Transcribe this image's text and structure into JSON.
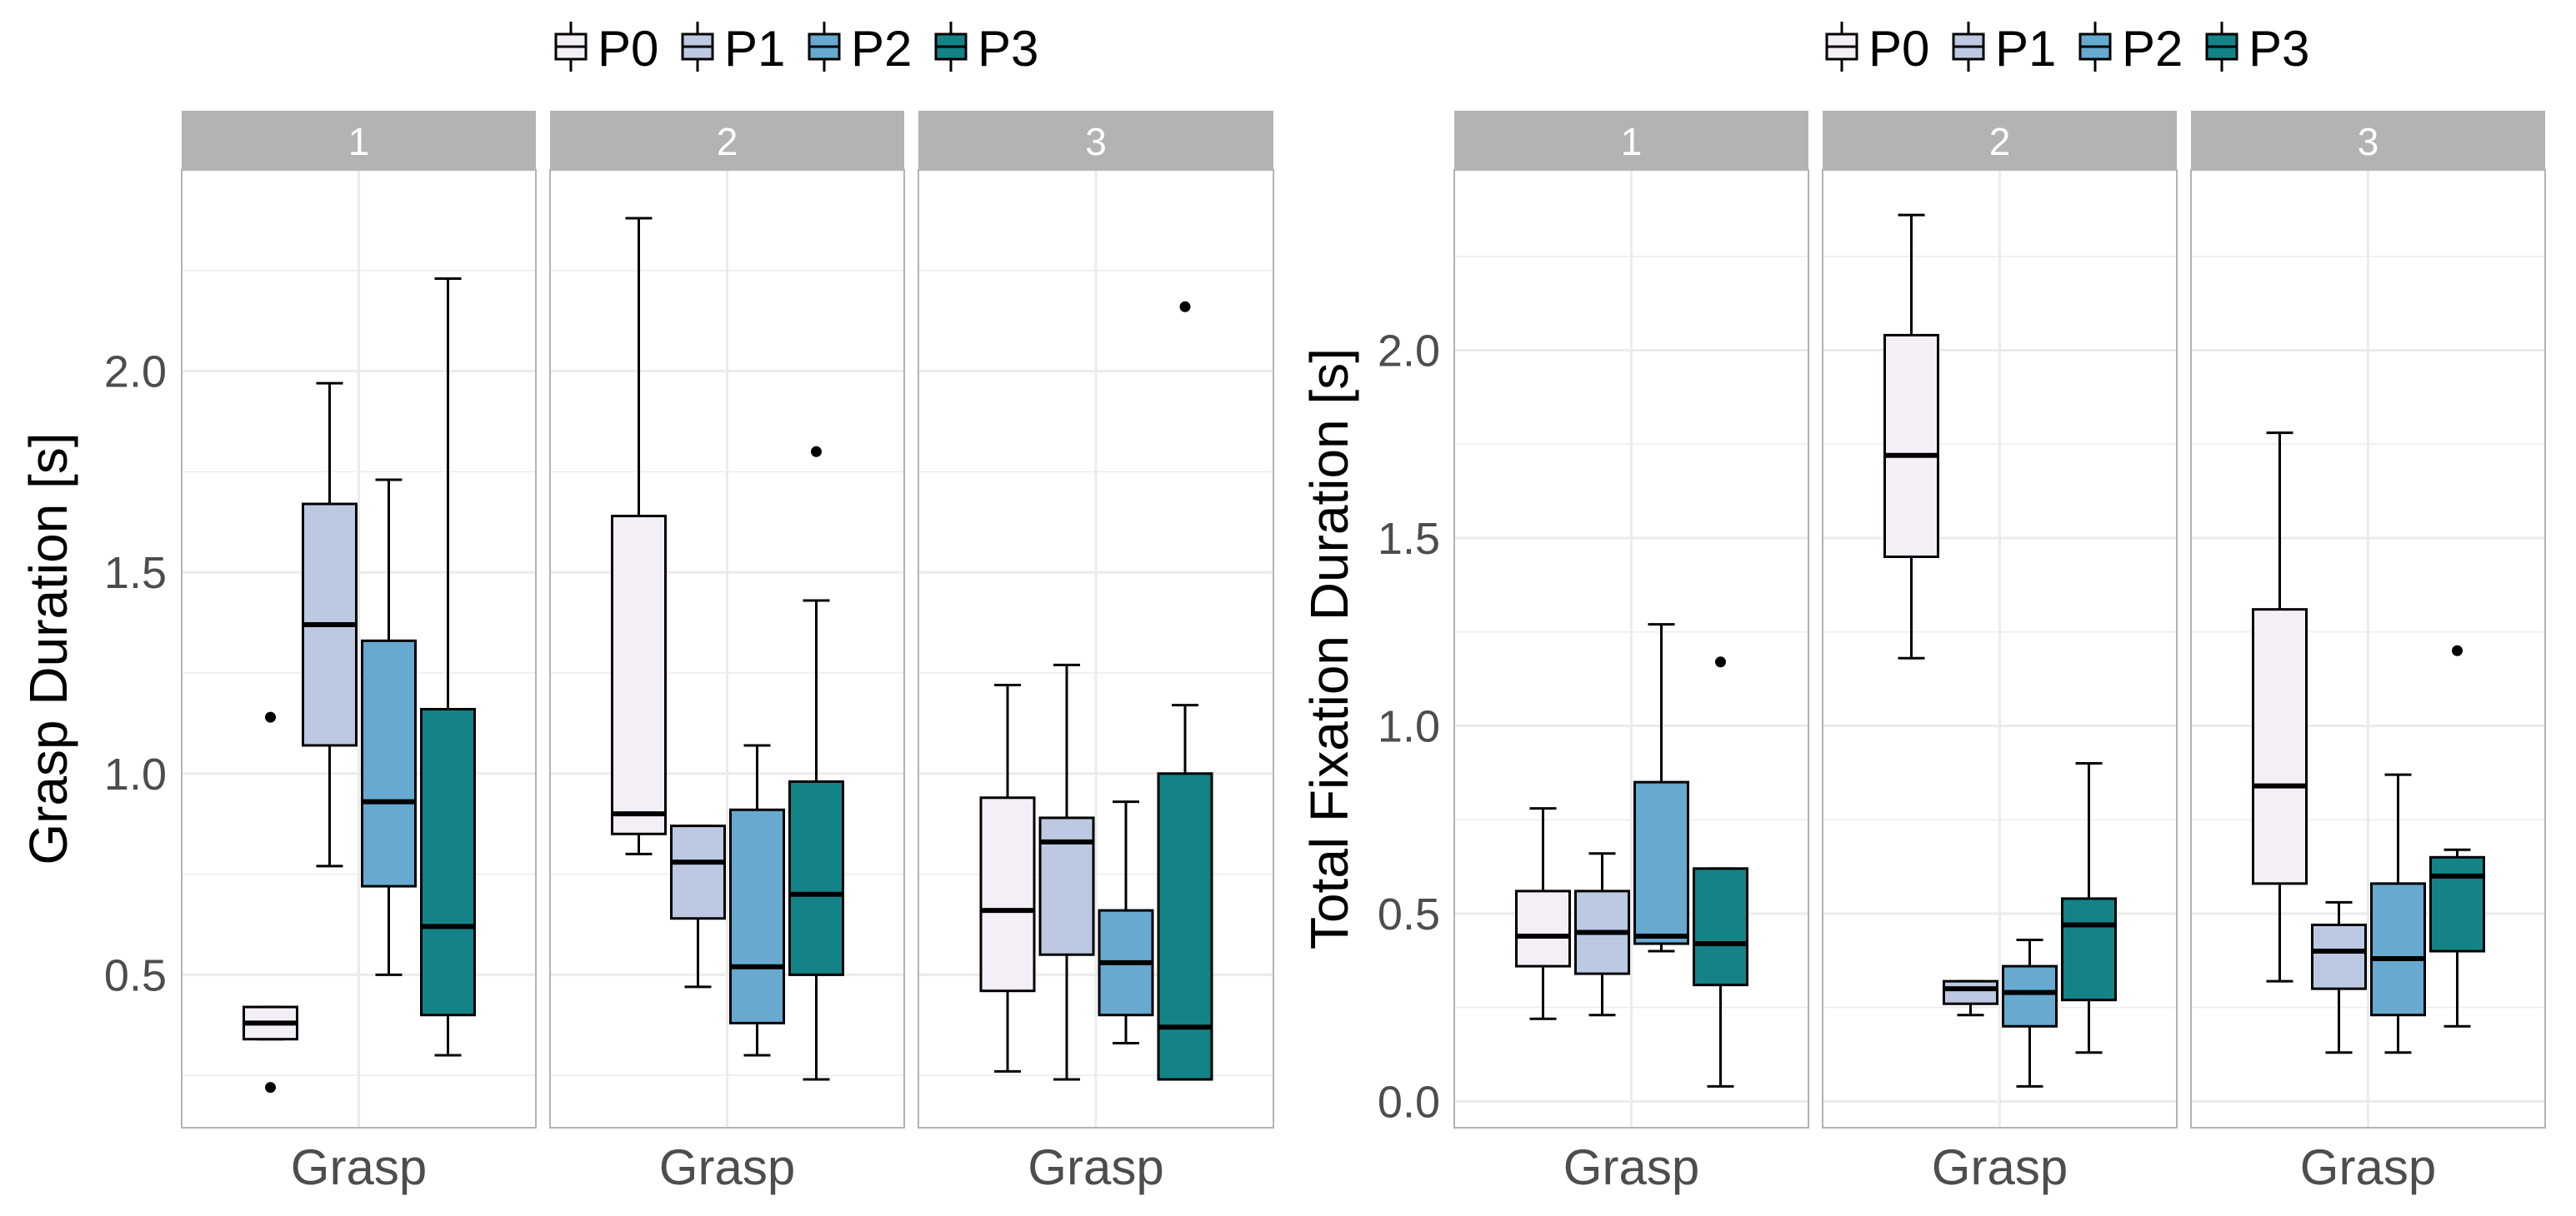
{
  "charts": [
    {
      "type": "box",
      "ylabel": "Grasp Duration [s]",
      "yticks": [
        "0.5",
        "1.0",
        "1.5",
        "2.0"
      ],
      "ylim": [
        0.12,
        2.5
      ],
      "legend": [
        "P0",
        "P1",
        "P2",
        "P3"
      ],
      "facets": [
        {
          "label": "1",
          "xtick": "Grasp",
          "boxes": [
            {
              "series": "P0",
              "min": 0.34,
              "q1": 0.34,
              "median": 0.38,
              "q3": 0.42,
              "max": 0.42,
              "outliers": [
                1.14,
                0.22
              ]
            },
            {
              "series": "P1",
              "min": 0.77,
              "q1": 1.07,
              "median": 1.37,
              "q3": 1.67,
              "max": 1.97,
              "outliers": []
            },
            {
              "series": "P2",
              "min": 0.5,
              "q1": 0.72,
              "median": 0.93,
              "q3": 1.33,
              "max": 1.73,
              "outliers": []
            },
            {
              "series": "P3",
              "min": 0.3,
              "q1": 0.4,
              "median": 0.62,
              "q3": 1.16,
              "max": 2.23,
              "outliers": []
            }
          ]
        },
        {
          "label": "2",
          "xtick": "Grasp",
          "boxes": [
            {
              "series": "P0",
              "min": 0.8,
              "q1": 0.85,
              "median": 0.9,
              "q3": 1.64,
              "max": 2.38,
              "outliers": []
            },
            {
              "series": "P1",
              "min": 0.47,
              "q1": 0.64,
              "median": 0.78,
              "q3": 0.87,
              "max": 0.87,
              "outliers": []
            },
            {
              "series": "P2",
              "min": 0.3,
              "q1": 0.38,
              "median": 0.52,
              "q3": 0.91,
              "max": 1.07,
              "outliers": []
            },
            {
              "series": "P3",
              "min": 0.24,
              "q1": 0.5,
              "median": 0.7,
              "q3": 0.98,
              "max": 1.43,
              "outliers": [
                1.8
              ]
            }
          ]
        },
        {
          "label": "3",
          "xtick": "Grasp",
          "boxes": [
            {
              "series": "P0",
              "min": 0.26,
              "q1": 0.46,
              "median": 0.66,
              "q3": 0.94,
              "max": 1.22,
              "outliers": []
            },
            {
              "series": "P1",
              "min": 0.24,
              "q1": 0.55,
              "median": 0.83,
              "q3": 0.89,
              "max": 1.27,
              "outliers": []
            },
            {
              "series": "P2",
              "min": 0.33,
              "q1": 0.4,
              "median": 0.53,
              "q3": 0.66,
              "max": 0.93,
              "outliers": []
            },
            {
              "series": "P3",
              "min": 0.24,
              "q1": 0.24,
              "median": 0.37,
              "q3": 1.0,
              "max": 1.17,
              "outliers": [
                2.16
              ]
            }
          ]
        }
      ]
    },
    {
      "type": "box",
      "ylabel": "Total Fixation Duration [s]",
      "yticks": [
        "0.0",
        "0.5",
        "1.0",
        "1.5",
        "2.0"
      ],
      "ylim": [
        -0.07,
        2.48
      ],
      "legend": [
        "P0",
        "P1",
        "P2",
        "P3"
      ],
      "facets": [
        {
          "label": "1",
          "xtick": "Grasp",
          "boxes": [
            {
              "series": "P0",
              "min": 0.22,
              "q1": 0.36,
              "median": 0.44,
              "q3": 0.56,
              "max": 0.78,
              "outliers": []
            },
            {
              "series": "P1",
              "min": 0.23,
              "q1": 0.34,
              "median": 0.45,
              "q3": 0.56,
              "max": 0.66,
              "outliers": []
            },
            {
              "series": "P2",
              "min": 0.4,
              "q1": 0.42,
              "median": 0.44,
              "q3": 0.85,
              "max": 1.27,
              "outliers": []
            },
            {
              "series": "P3",
              "min": 0.04,
              "q1": 0.31,
              "median": 0.42,
              "q3": 0.62,
              "max": 0.62,
              "outliers": [
                1.17
              ]
            }
          ]
        },
        {
          "label": "2",
          "xtick": "Grasp",
          "boxes": [
            {
              "series": "P0",
              "min": 1.18,
              "q1": 1.45,
              "median": 1.72,
              "q3": 2.04,
              "max": 2.36,
              "outliers": []
            },
            {
              "series": "P1",
              "min": 0.23,
              "q1": 0.26,
              "median": 0.3,
              "q3": 0.32,
              "max": 0.32,
              "outliers": []
            },
            {
              "series": "P2",
              "min": 0.04,
              "q1": 0.2,
              "median": 0.29,
              "q3": 0.36,
              "max": 0.43,
              "outliers": []
            },
            {
              "series": "P3",
              "min": 0.13,
              "q1": 0.27,
              "median": 0.47,
              "q3": 0.54,
              "max": 0.9,
              "outliers": []
            }
          ]
        },
        {
          "label": "3",
          "xtick": "Grasp",
          "boxes": [
            {
              "series": "P0",
              "min": 0.32,
              "q1": 0.58,
              "median": 0.84,
              "q3": 1.31,
              "max": 1.78,
              "outliers": []
            },
            {
              "series": "P1",
              "min": 0.13,
              "q1": 0.3,
              "median": 0.4,
              "q3": 0.47,
              "max": 0.53,
              "outliers": []
            },
            {
              "series": "P2",
              "min": 0.13,
              "q1": 0.23,
              "median": 0.38,
              "q3": 0.58,
              "max": 0.87,
              "outliers": []
            },
            {
              "series": "P3",
              "min": 0.2,
              "q1": 0.4,
              "median": 0.6,
              "q3": 0.65,
              "max": 0.67,
              "outliers": [
                1.2
              ]
            }
          ]
        }
      ]
    }
  ],
  "colors": {
    "P0": "#f4eef6",
    "P1": "#bdc9e2",
    "P2": "#67a9cf",
    "P3": "#138388",
    "strip": "#b3b3b3",
    "grid": "#ebebeb",
    "border": "#b3b3b3"
  }
}
